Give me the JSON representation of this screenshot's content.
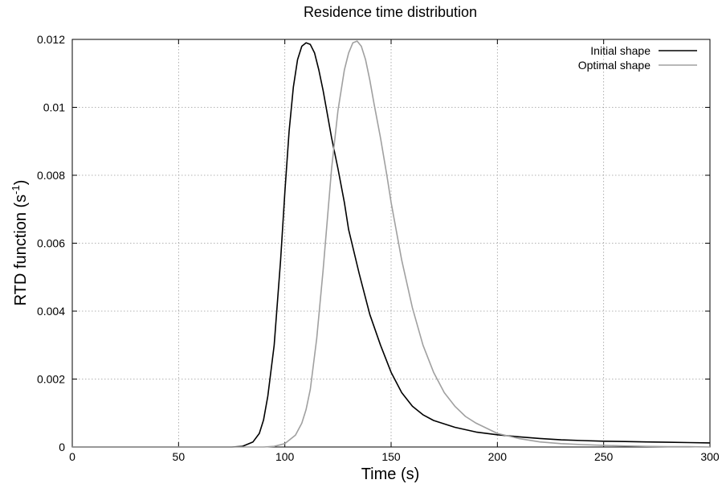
{
  "chart_data": {
    "type": "line",
    "title": "Residence time distribution",
    "xlabel": "Time (s)",
    "ylabel": "RTD function (s",
    "ylabel_sup": "-1",
    "ylabel_end": ")",
    "xlim": [
      0,
      300
    ],
    "ylim": [
      0,
      0.012
    ],
    "x_ticks": [
      0,
      50,
      100,
      150,
      200,
      250,
      300
    ],
    "x_tick_labels": [
      "0",
      "50",
      "100",
      "150",
      "200",
      "250",
      "300"
    ],
    "y_ticks": [
      0,
      0.002,
      0.004,
      0.006,
      0.008,
      0.01,
      0.012
    ],
    "y_tick_labels": [
      "0",
      "0.002",
      "0.004",
      "0.006",
      "0.008",
      "0.01",
      "0.012"
    ],
    "grid": true,
    "legend_position": "top-right",
    "series": [
      {
        "name": "Initial shape",
        "color": "#000000",
        "x": [
          0,
          75,
          80,
          85,
          88,
          90,
          92,
          95,
          98,
          100,
          102,
          104,
          106,
          108,
          110,
          112,
          114,
          116,
          118,
          120,
          122,
          125,
          128,
          130,
          135,
          140,
          145,
          150,
          155,
          160,
          165,
          170,
          180,
          190,
          200,
          210,
          220,
          230,
          240,
          250,
          260,
          270,
          280,
          290,
          300
        ],
        "y": [
          0,
          0,
          2e-05,
          0.00015,
          0.0004,
          0.0008,
          0.0015,
          0.003,
          0.0055,
          0.0075,
          0.0093,
          0.0106,
          0.0114,
          0.0118,
          0.0119,
          0.01185,
          0.0116,
          0.0111,
          0.0105,
          0.0098,
          0.0091,
          0.0082,
          0.0072,
          0.0064,
          0.0051,
          0.0039,
          0.003,
          0.0022,
          0.0016,
          0.0012,
          0.00095,
          0.00078,
          0.00058,
          0.00044,
          0.00036,
          0.0003,
          0.00025,
          0.00021,
          0.00019,
          0.00017,
          0.00016,
          0.00015,
          0.00014,
          0.00013,
          0.00012
        ]
      },
      {
        "name": "Optimal shape",
        "color": "#a0a0a0",
        "x": [
          0,
          90,
          95,
          100,
          105,
          108,
          110,
          112,
          115,
          118,
          120,
          122,
          125,
          128,
          130,
          132,
          134,
          136,
          138,
          140,
          142,
          145,
          148,
          150,
          155,
          160,
          165,
          170,
          175,
          180,
          185,
          190,
          200,
          210,
          220,
          230,
          240,
          250,
          260,
          270,
          280,
          290,
          300
        ],
        "y": [
          0,
          0,
          2e-05,
          0.0001,
          0.00035,
          0.0007,
          0.0011,
          0.0017,
          0.0032,
          0.0052,
          0.0067,
          0.0082,
          0.0099,
          0.0111,
          0.0116,
          0.0119,
          0.01195,
          0.0118,
          0.0114,
          0.0108,
          0.0101,
          0.0091,
          0.008,
          0.0072,
          0.0055,
          0.0041,
          0.003,
          0.0022,
          0.0016,
          0.0012,
          0.0009,
          0.0007,
          0.0004,
          0.00025,
          0.00015,
          0.0001,
          7e-05,
          5e-05,
          3e-05,
          2e-05,
          1e-05,
          1e-05,
          0
        ]
      }
    ]
  }
}
